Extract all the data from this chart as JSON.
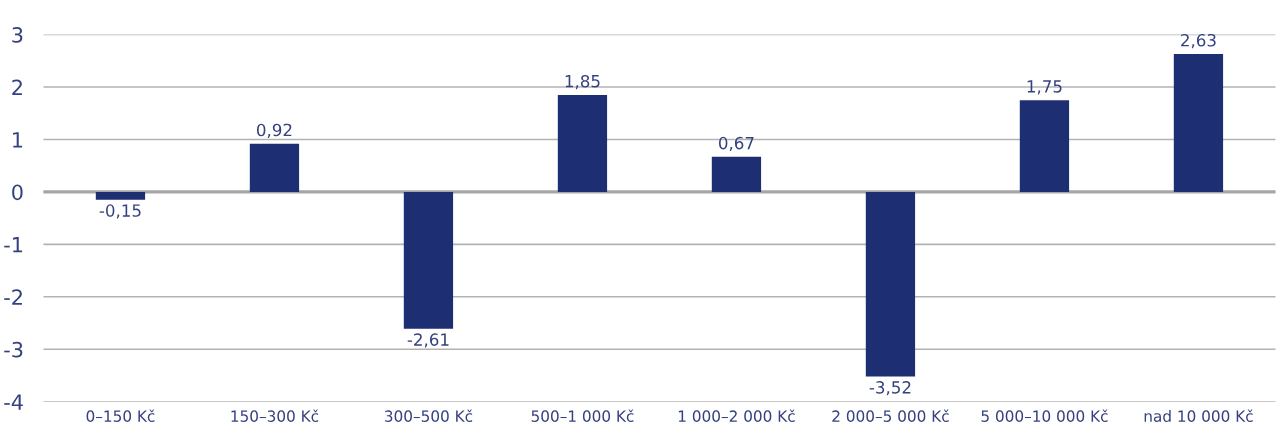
{
  "chart_data": {
    "type": "bar",
    "categories": [
      "0–150 Kč",
      "150–300 Kč",
      "300–500 Kč",
      "500–1 000 Kč",
      "1 000–2 000 Kč",
      "2 000–5 000 Kč",
      "5 000–10 000 Kč",
      "nad 10 000 Kč"
    ],
    "values": [
      -0.15,
      0.92,
      -2.61,
      1.85,
      0.67,
      -3.52,
      1.75,
      2.63
    ],
    "value_labels": [
      "-0,15",
      "0,92",
      "-2,61",
      "1,85",
      "0,67",
      "-3,52",
      "1,75",
      "2,63"
    ],
    "color": "#1e2e73",
    "ylim": [
      -4,
      3
    ],
    "yticks": [
      -4,
      -3,
      -2,
      -1,
      0,
      1,
      2,
      3
    ],
    "grid": "y",
    "ref_lines": [
      {
        "axis": "y",
        "value": 0,
        "color": "#a6a6a6"
      }
    ]
  }
}
